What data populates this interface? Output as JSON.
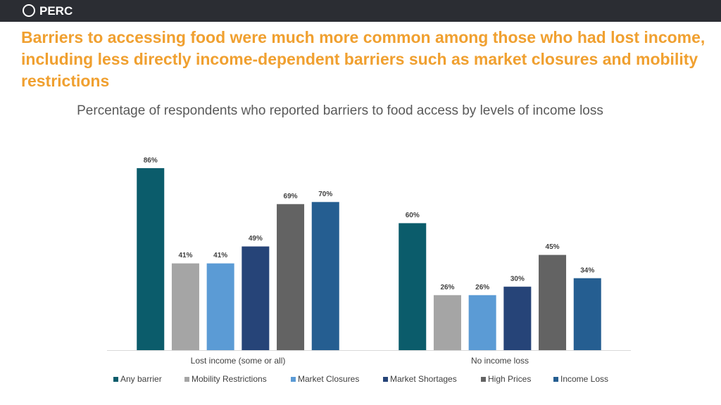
{
  "header": {
    "logo": "PERC"
  },
  "title": "Barriers to accessing food were much more common among those who had lost income, including less directly income-dependent barriers such as market closures and mobility restrictions",
  "chart_data": {
    "type": "bar",
    "title": "Percentage of respondents who reported barriers to food access by levels of income loss",
    "categories": [
      "Lost income (some or all)",
      "No income loss"
    ],
    "series": [
      {
        "name": "Any barrier",
        "color": "#0b5c6b",
        "values": [
          86,
          60
        ],
        "value_labels": [
          "86%",
          "60%"
        ]
      },
      {
        "name": "Mobility Restrictions",
        "color": "#a5a5a5",
        "values": [
          41,
          26
        ],
        "value_labels": [
          "41%",
          "26%"
        ]
      },
      {
        "name": "Market Closures",
        "color": "#5b9bd5",
        "values": [
          41,
          26
        ],
        "value_labels": [
          "41%",
          "26%"
        ]
      },
      {
        "name": "Market Shortages",
        "color": "#264478",
        "values": [
          49,
          30
        ],
        "value_labels": [
          "49%",
          "30%"
        ]
      },
      {
        "name": "High Prices",
        "color": "#636363",
        "values": [
          69,
          45
        ],
        "value_labels": [
          "69%",
          "45%"
        ]
      },
      {
        "name": "Income Loss",
        "color": "#255e91",
        "values": [
          70,
          34
        ],
        "value_labels": [
          "70%",
          "34%"
        ]
      }
    ],
    "legend": "bottom"
  }
}
